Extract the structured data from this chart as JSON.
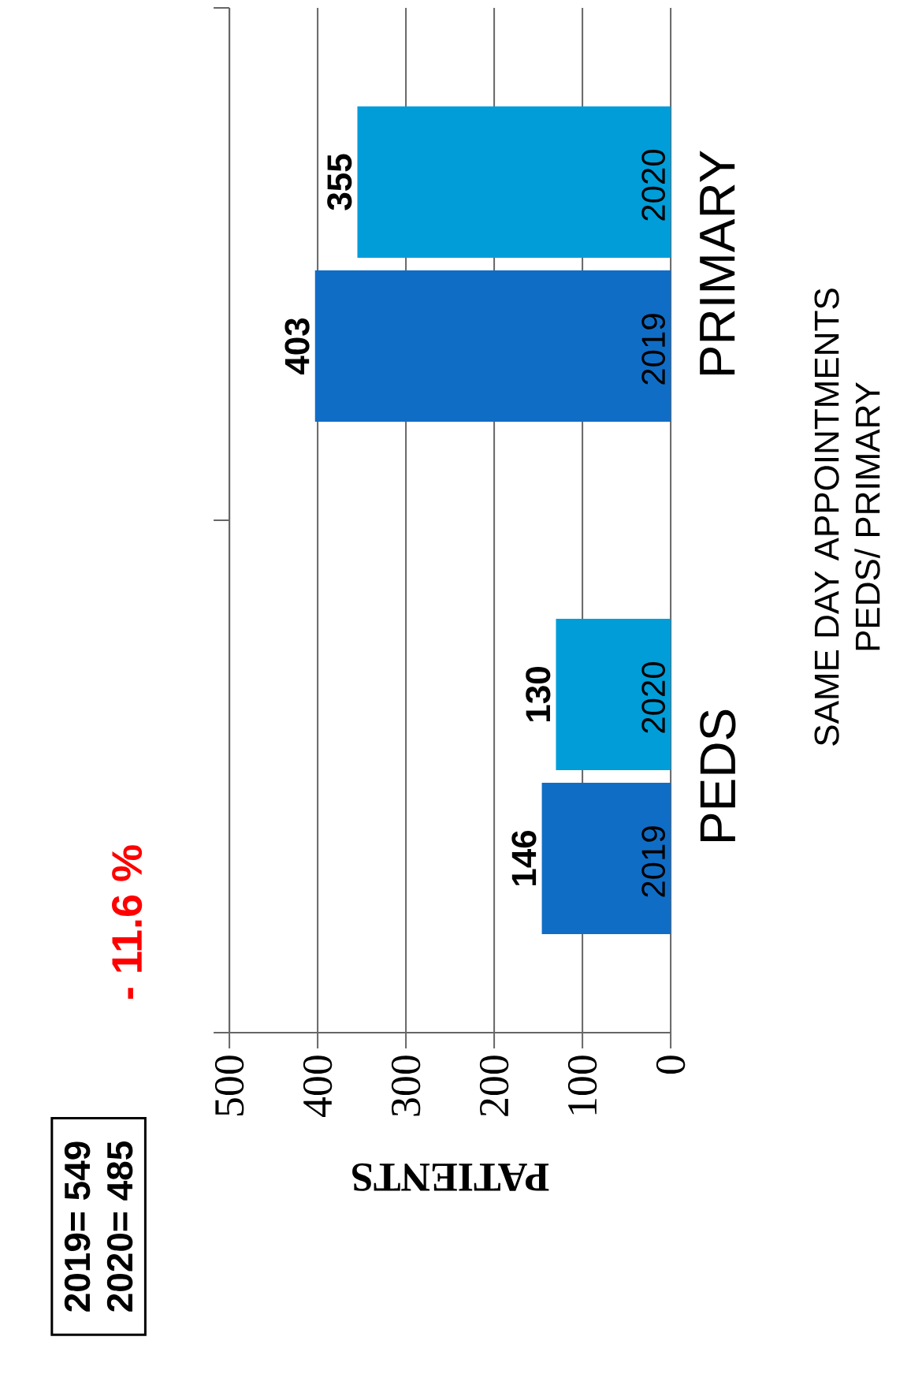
{
  "chart_data": {
    "type": "bar",
    "orientation": "horizontal",
    "title": "SAME DAY APPOINTMENTS",
    "subtitle": "PEDS/ PRIMARY",
    "xlabel": "PATIENTS",
    "categories": [
      "PRIMARY",
      "PEDS"
    ],
    "series": [
      {
        "name": "2019",
        "color": "#106dc6",
        "values": [
          403,
          146
        ]
      },
      {
        "name": "2020",
        "color": "#009dd9",
        "values": [
          355,
          130
        ]
      }
    ],
    "xlim": [
      500,
      0
    ],
    "xticks": [
      500,
      400,
      300,
      200,
      100,
      0
    ],
    "grid": "x",
    "data_labels": true,
    "annotations": [
      "- 11.6  %",
      "2019= 549",
      "2020= 485"
    ]
  }
}
